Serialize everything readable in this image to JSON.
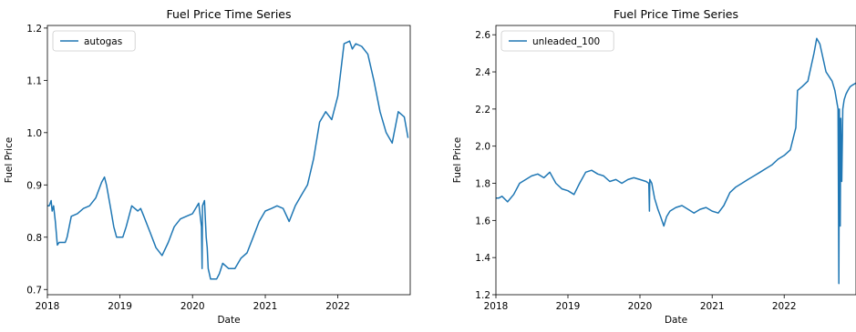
{
  "chart_data": [
    {
      "type": "line",
      "title": "Fuel Price Time Series",
      "xlabel": "Date",
      "ylabel": "Fuel Price",
      "x_range": [
        "2018-01-01",
        "2022-12-31"
      ],
      "xticks": [
        "2018",
        "2019",
        "2020",
        "2021",
        "2022"
      ],
      "ylim": [
        0.69,
        1.205
      ],
      "yticks": [
        "0.7",
        "0.8",
        "0.9",
        "1.0",
        "1.1",
        "1.2"
      ],
      "legend_position": "top-left",
      "grid": false,
      "color": "#1f77b4",
      "series": [
        {
          "name": "autogas",
          "x": [
            "2018-01-01",
            "2018-01-10",
            "2018-01-20",
            "2018-01-25",
            "2018-02-01",
            "2018-02-10",
            "2018-02-20",
            "2018-03-01",
            "2018-03-15",
            "2018-04-01",
            "2018-04-10",
            "2018-05-01",
            "2018-06-01",
            "2018-07-01",
            "2018-08-01",
            "2018-09-01",
            "2018-10-01",
            "2018-10-15",
            "2018-10-25",
            "2018-11-15",
            "2018-12-01",
            "2018-12-15",
            "2019-01-01",
            "2019-01-15",
            "2019-02-01",
            "2019-03-01",
            "2019-04-01",
            "2019-04-15",
            "2019-05-01",
            "2019-06-01",
            "2019-07-01",
            "2019-08-01",
            "2019-09-01",
            "2019-10-01",
            "2019-11-01",
            "2019-12-01",
            "2020-01-01",
            "2020-02-01",
            "2020-02-15",
            "2020-02-18",
            "2020-02-20",
            "2020-03-01",
            "2020-03-10",
            "2020-03-15",
            "2020-03-20",
            "2020-04-01",
            "2020-04-15",
            "2020-05-01",
            "2020-05-15",
            "2020-06-01",
            "2020-07-01",
            "2020-08-01",
            "2020-09-01",
            "2020-10-01",
            "2020-11-01",
            "2020-12-01",
            "2021-01-01",
            "2021-02-01",
            "2021-03-01",
            "2021-04-01",
            "2021-05-01",
            "2021-06-01",
            "2021-07-01",
            "2021-08-01",
            "2021-09-01",
            "2021-10-01",
            "2021-11-01",
            "2021-12-01",
            "2022-01-01",
            "2022-02-01",
            "2022-03-01",
            "2022-03-15",
            "2022-04-01",
            "2022-05-01",
            "2022-06-01",
            "2022-07-01",
            "2022-08-01",
            "2022-09-01",
            "2022-10-01",
            "2022-11-01",
            "2022-12-01",
            "2022-12-20"
          ],
          "values": [
            0.86,
            0.86,
            0.87,
            0.85,
            0.86,
            0.83,
            0.785,
            0.79,
            0.79,
            0.79,
            0.8,
            0.84,
            0.845,
            0.855,
            0.86,
            0.875,
            0.905,
            0.915,
            0.9,
            0.855,
            0.82,
            0.8,
            0.8,
            0.8,
            0.82,
            0.86,
            0.85,
            0.855,
            0.84,
            0.81,
            0.78,
            0.765,
            0.79,
            0.82,
            0.835,
            0.84,
            0.845,
            0.865,
            0.82,
            0.74,
            0.86,
            0.87,
            0.8,
            0.78,
            0.74,
            0.72,
            0.72,
            0.72,
            0.73,
            0.75,
            0.74,
            0.74,
            0.76,
            0.77,
            0.8,
            0.83,
            0.85,
            0.855,
            0.86,
            0.855,
            0.83,
            0.86,
            0.88,
            0.9,
            0.95,
            1.02,
            1.04,
            1.025,
            1.07,
            1.17,
            1.175,
            1.16,
            1.17,
            1.165,
            1.15,
            1.1,
            1.04,
            1.0,
            0.98,
            1.04,
            1.03,
            0.99
          ]
        }
      ]
    },
    {
      "type": "line",
      "title": "Fuel Price Time Series",
      "xlabel": "Date",
      "ylabel": "Fuel Price",
      "x_range": [
        "2018-01-01",
        "2022-12-31"
      ],
      "xticks": [
        "2018",
        "2019",
        "2020",
        "2021",
        "2022"
      ],
      "ylim": [
        1.2,
        2.65
      ],
      "yticks": [
        "1.2",
        "1.4",
        "1.6",
        "1.8",
        "2.0",
        "2.2",
        "2.4",
        "2.6"
      ],
      "legend_position": "top-left",
      "grid": false,
      "color": "#1f77b4",
      "series": [
        {
          "name": "unleaded_100",
          "x": [
            "2018-01-01",
            "2018-01-15",
            "2018-02-01",
            "2018-03-01",
            "2018-04-01",
            "2018-05-01",
            "2018-06-01",
            "2018-07-01",
            "2018-08-01",
            "2018-09-01",
            "2018-10-01",
            "2018-11-01",
            "2018-12-01",
            "2019-01-01",
            "2019-02-01",
            "2019-03-01",
            "2019-04-01",
            "2019-05-01",
            "2019-06-01",
            "2019-07-01",
            "2019-08-01",
            "2019-09-01",
            "2019-10-01",
            "2019-11-01",
            "2019-12-01",
            "2020-01-01",
            "2020-02-01",
            "2020-02-15",
            "2020-02-18",
            "2020-02-20",
            "2020-03-01",
            "2020-03-15",
            "2020-04-01",
            "2020-04-15",
            "2020-05-01",
            "2020-05-15",
            "2020-06-01",
            "2020-07-01",
            "2020-08-01",
            "2020-09-01",
            "2020-10-01",
            "2020-11-01",
            "2020-12-01",
            "2021-01-01",
            "2021-02-01",
            "2021-03-01",
            "2021-04-01",
            "2021-05-01",
            "2021-06-01",
            "2021-07-01",
            "2021-08-01",
            "2021-09-01",
            "2021-10-01",
            "2021-11-01",
            "2021-12-01",
            "2022-01-01",
            "2022-02-01",
            "2022-03-01",
            "2022-03-10",
            "2022-04-01",
            "2022-05-01",
            "2022-06-01",
            "2022-06-15",
            "2022-07-01",
            "2022-08-01",
            "2022-09-01",
            "2022-09-15",
            "2022-10-01",
            "2022-10-05",
            "2022-10-08",
            "2022-10-12",
            "2022-10-15",
            "2022-10-20",
            "2022-10-25",
            "2022-11-01",
            "2022-11-10",
            "2022-11-20",
            "2022-12-01",
            "2022-12-15",
            "2022-12-31"
          ],
          "values": [
            1.72,
            1.72,
            1.73,
            1.7,
            1.74,
            1.8,
            1.82,
            1.84,
            1.85,
            1.83,
            1.86,
            1.8,
            1.77,
            1.76,
            1.74,
            1.8,
            1.86,
            1.87,
            1.85,
            1.84,
            1.81,
            1.82,
            1.8,
            1.82,
            1.83,
            1.82,
            1.81,
            1.8,
            1.65,
            1.82,
            1.8,
            1.72,
            1.66,
            1.62,
            1.57,
            1.62,
            1.65,
            1.67,
            1.68,
            1.66,
            1.64,
            1.66,
            1.67,
            1.65,
            1.64,
            1.68,
            1.75,
            1.78,
            1.8,
            1.82,
            1.84,
            1.86,
            1.88,
            1.9,
            1.93,
            1.95,
            1.98,
            2.1,
            2.3,
            2.32,
            2.35,
            2.5,
            2.58,
            2.55,
            2.4,
            2.35,
            2.3,
            2.2,
            1.26,
            2.2,
            1.57,
            2.15,
            1.81,
            2.2,
            2.25,
            2.28,
            2.3,
            2.32,
            2.33,
            2.34
          ]
        }
      ]
    }
  ]
}
